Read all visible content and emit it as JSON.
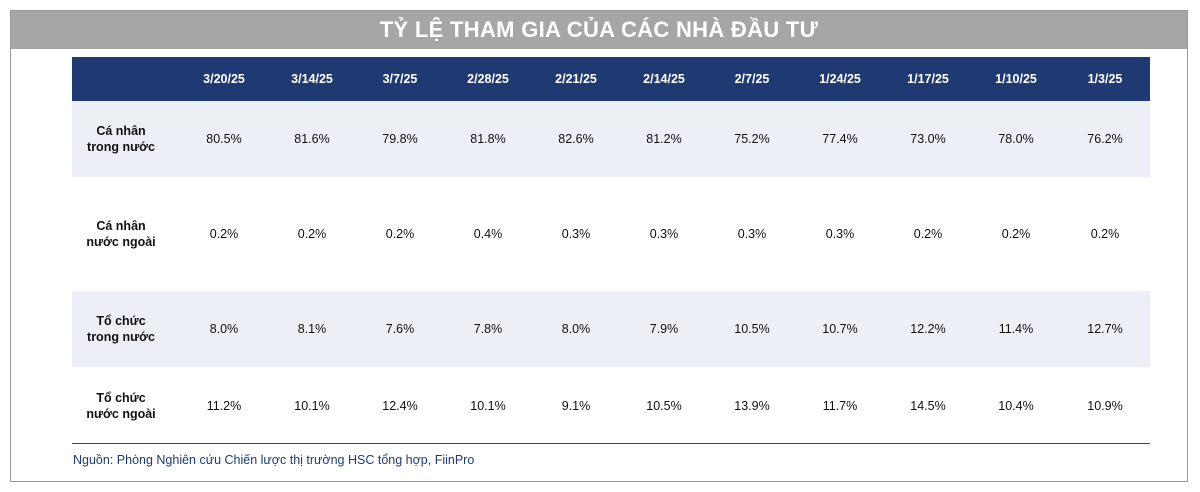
{
  "title": "TỶ LỆ THAM GIA CỦA CÁC NHÀ ĐẦU TƯ",
  "columns": [
    "",
    "3/20/25",
    "3/14/25",
    "3/7/25",
    "2/28/25",
    "2/21/25",
    "2/14/25",
    "2/7/25",
    "1/24/25",
    "1/17/25",
    "1/10/25",
    "1/3/25"
  ],
  "rows": [
    {
      "label": "Cá nhân trong nước",
      "values": [
        "80.5%",
        "81.6%",
        "79.8%",
        "81.8%",
        "82.6%",
        "81.2%",
        "75.2%",
        "77.4%",
        "73.0%",
        "78.0%",
        "76.2%"
      ]
    },
    {
      "label": "Cá nhân nước ngoài",
      "values": [
        "0.2%",
        "0.2%",
        "0.2%",
        "0.4%",
        "0.3%",
        "0.3%",
        "0.3%",
        "0.3%",
        "0.2%",
        "0.2%",
        "0.2%"
      ]
    },
    {
      "label": "Tổ chức trong nước",
      "values": [
        "8.0%",
        "8.1%",
        "7.6%",
        "7.8%",
        "8.0%",
        "7.9%",
        "10.5%",
        "10.7%",
        "12.2%",
        "11.4%",
        "12.7%"
      ]
    },
    {
      "label": "Tổ chức nước ngoài",
      "values": [
        "11.2%",
        "10.1%",
        "12.4%",
        "10.1%",
        "9.1%",
        "10.5%",
        "13.9%",
        "11.7%",
        "14.5%",
        "10.4%",
        "10.9%"
      ]
    }
  ],
  "source": "Nguồn: Phòng Nghiên cứu Chiến lược thị trường HSC tổng hợp, FiinPro",
  "colors": {
    "header": "#1f3a73",
    "title_bar": "#a6a6a6",
    "band": "#eceff5"
  }
}
